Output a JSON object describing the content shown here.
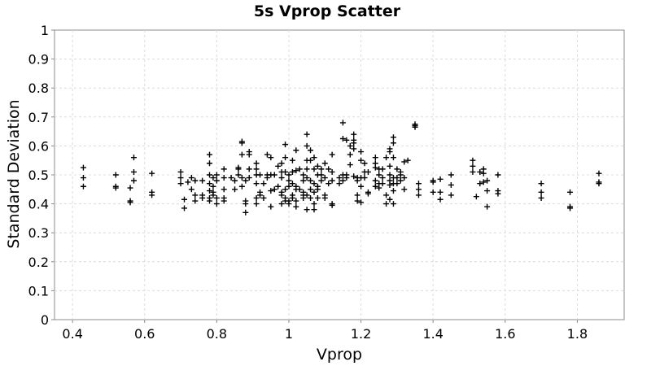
{
  "chart_data": {
    "type": "scatter",
    "title": "5s Vprop Scatter",
    "xlabel": "Vprop",
    "ylabel": "Standard Deviation",
    "xlim": [
      0.35,
      1.93
    ],
    "ylim": [
      0,
      1
    ],
    "xticks": [
      "0.4",
      "0.6",
      "0.8",
      "1",
      "1.2",
      "1.4",
      "1.6",
      "1.8"
    ],
    "xtick_values": [
      0.4,
      0.6,
      0.8,
      1.0,
      1.2,
      1.4,
      1.6,
      1.8
    ],
    "yticks": [
      "0",
      "0.1",
      "0.2",
      "0.3",
      "0.4",
      "0.5",
      "0.6",
      "0.7",
      "0.8",
      "0.9",
      "1"
    ],
    "ytick_values": [
      0,
      0.1,
      0.2,
      0.3,
      0.4,
      0.5,
      0.6,
      0.7,
      0.8,
      0.9,
      1.0
    ],
    "grid": true,
    "marker": "plus",
    "marker_color": "#000000",
    "points": [
      [
        0.43,
        0.525
      ],
      [
        0.43,
        0.49
      ],
      [
        0.43,
        0.46
      ],
      [
        0.52,
        0.5
      ],
      [
        0.52,
        0.46
      ],
      [
        0.52,
        0.455
      ],
      [
        0.56,
        0.455
      ],
      [
        0.56,
        0.41
      ],
      [
        0.56,
        0.405
      ],
      [
        0.57,
        0.56
      ],
      [
        0.57,
        0.51
      ],
      [
        0.57,
        0.48
      ],
      [
        0.62,
        0.505
      ],
      [
        0.62,
        0.44
      ],
      [
        0.62,
        0.43
      ],
      [
        0.7,
        0.51
      ],
      [
        0.7,
        0.49
      ],
      [
        0.7,
        0.47
      ],
      [
        0.71,
        0.415
      ],
      [
        0.71,
        0.385
      ],
      [
        0.72,
        0.475
      ],
      [
        0.73,
        0.49
      ],
      [
        0.73,
        0.45
      ],
      [
        0.74,
        0.43
      ],
      [
        0.74,
        0.41
      ],
      [
        0.74,
        0.48
      ],
      [
        0.76,
        0.48
      ],
      [
        0.76,
        0.43
      ],
      [
        0.76,
        0.42
      ],
      [
        0.78,
        0.57
      ],
      [
        0.78,
        0.54
      ],
      [
        0.78,
        0.5
      ],
      [
        0.78,
        0.47
      ],
      [
        0.78,
        0.445
      ],
      [
        0.78,
        0.42
      ],
      [
        0.78,
        0.41
      ],
      [
        0.79,
        0.46
      ],
      [
        0.79,
        0.44
      ],
      [
        0.79,
        0.43
      ],
      [
        0.79,
        0.49
      ],
      [
        0.8,
        0.5
      ],
      [
        0.8,
        0.48
      ],
      [
        0.8,
        0.42
      ],
      [
        0.8,
        0.4
      ],
      [
        0.82,
        0.52
      ],
      [
        0.82,
        0.49
      ],
      [
        0.82,
        0.45
      ],
      [
        0.82,
        0.42
      ],
      [
        0.82,
        0.41
      ],
      [
        0.84,
        0.49
      ],
      [
        0.85,
        0.48
      ],
      [
        0.85,
        0.45
      ],
      [
        0.86,
        0.5
      ],
      [
        0.86,
        0.52
      ],
      [
        0.86,
        0.525
      ],
      [
        0.87,
        0.615
      ],
      [
        0.87,
        0.61
      ],
      [
        0.87,
        0.57
      ],
      [
        0.87,
        0.49
      ],
      [
        0.87,
        0.46
      ],
      [
        0.88,
        0.41
      ],
      [
        0.88,
        0.4
      ],
      [
        0.88,
        0.37
      ],
      [
        0.88,
        0.48
      ],
      [
        0.89,
        0.58
      ],
      [
        0.89,
        0.57
      ],
      [
        0.89,
        0.52
      ],
      [
        0.89,
        0.49
      ],
      [
        0.91,
        0.54
      ],
      [
        0.91,
        0.52
      ],
      [
        0.91,
        0.5
      ],
      [
        0.91,
        0.47
      ],
      [
        0.91,
        0.4
      ],
      [
        0.91,
        0.42
      ],
      [
        0.92,
        0.5
      ],
      [
        0.92,
        0.44
      ],
      [
        0.92,
        0.43
      ],
      [
        0.93,
        0.42
      ],
      [
        0.93,
        0.47
      ],
      [
        0.94,
        0.57
      ],
      [
        0.94,
        0.5
      ],
      [
        0.94,
        0.49
      ],
      [
        0.95,
        0.56
      ],
      [
        0.95,
        0.5
      ],
      [
        0.95,
        0.445
      ],
      [
        0.95,
        0.39
      ],
      [
        0.96,
        0.5
      ],
      [
        0.96,
        0.45
      ],
      [
        0.97,
        0.46
      ],
      [
        0.97,
        0.53
      ],
      [
        0.98,
        0.54
      ],
      [
        0.98,
        0.51
      ],
      [
        0.98,
        0.49
      ],
      [
        0.98,
        0.44
      ],
      [
        0.98,
        0.43
      ],
      [
        0.98,
        0.4
      ],
      [
        0.99,
        0.605
      ],
      [
        0.99,
        0.56
      ],
      [
        0.99,
        0.51
      ],
      [
        0.99,
        0.45
      ],
      [
        0.99,
        0.42
      ],
      [
        0.99,
        0.41
      ],
      [
        1.0,
        0.5
      ],
      [
        1.0,
        0.48
      ],
      [
        1.0,
        0.46
      ],
      [
        1.0,
        0.41
      ],
      [
        1.0,
        0.4
      ],
      [
        1.01,
        0.55
      ],
      [
        1.01,
        0.51
      ],
      [
        1.01,
        0.47
      ],
      [
        1.01,
        0.43
      ],
      [
        1.01,
        0.42
      ],
      [
        1.02,
        0.585
      ],
      [
        1.02,
        0.515
      ],
      [
        1.02,
        0.46
      ],
      [
        1.02,
        0.45
      ],
      [
        1.02,
        0.41
      ],
      [
        1.02,
        0.39
      ],
      [
        1.03,
        0.52
      ],
      [
        1.03,
        0.45
      ],
      [
        1.04,
        0.5
      ],
      [
        1.04,
        0.48
      ],
      [
        1.04,
        0.43
      ],
      [
        1.04,
        0.42
      ],
      [
        1.04,
        0.44
      ],
      [
        1.05,
        0.64
      ],
      [
        1.05,
        0.6
      ],
      [
        1.05,
        0.55
      ],
      [
        1.05,
        0.52
      ],
      [
        1.05,
        0.49
      ],
      [
        1.05,
        0.43
      ],
      [
        1.05,
        0.38
      ],
      [
        1.06,
        0.585
      ],
      [
        1.06,
        0.55
      ],
      [
        1.06,
        0.48
      ],
      [
        1.06,
        0.45
      ],
      [
        1.06,
        0.42
      ],
      [
        1.07,
        0.56
      ],
      [
        1.07,
        0.52
      ],
      [
        1.07,
        0.47
      ],
      [
        1.07,
        0.44
      ],
      [
        1.07,
        0.4
      ],
      [
        1.07,
        0.38
      ],
      [
        1.08,
        0.53
      ],
      [
        1.08,
        0.5
      ],
      [
        1.08,
        0.46
      ],
      [
        1.08,
        0.45
      ],
      [
        1.08,
        0.42
      ],
      [
        1.09,
        0.5
      ],
      [
        1.09,
        0.48
      ],
      [
        1.09,
        0.52
      ],
      [
        1.1,
        0.54
      ],
      [
        1.1,
        0.49
      ],
      [
        1.1,
        0.43
      ],
      [
        1.1,
        0.42
      ],
      [
        1.11,
        0.52
      ],
      [
        1.11,
        0.47
      ],
      [
        1.12,
        0.57
      ],
      [
        1.12,
        0.51
      ],
      [
        1.12,
        0.48
      ],
      [
        1.12,
        0.4
      ],
      [
        1.12,
        0.395
      ],
      [
        1.14,
        0.49
      ],
      [
        1.14,
        0.47
      ],
      [
        1.15,
        0.68
      ],
      [
        1.15,
        0.625
      ],
      [
        1.15,
        0.5
      ],
      [
        1.15,
        0.48
      ],
      [
        1.16,
        0.62
      ],
      [
        1.16,
        0.5
      ],
      [
        1.16,
        0.49
      ],
      [
        1.17,
        0.6
      ],
      [
        1.17,
        0.57
      ],
      [
        1.17,
        0.535
      ],
      [
        1.18,
        0.64
      ],
      [
        1.18,
        0.62
      ],
      [
        1.18,
        0.61
      ],
      [
        1.18,
        0.59
      ],
      [
        1.18,
        0.495
      ],
      [
        1.19,
        0.49
      ],
      [
        1.19,
        0.43
      ],
      [
        1.19,
        0.41
      ],
      [
        1.19,
        0.48
      ],
      [
        1.2,
        0.58
      ],
      [
        1.2,
        0.55
      ],
      [
        1.2,
        0.49
      ],
      [
        1.2,
        0.46
      ],
      [
        1.2,
        0.405
      ],
      [
        1.21,
        0.54
      ],
      [
        1.21,
        0.51
      ],
      [
        1.21,
        0.49
      ],
      [
        1.22,
        0.51
      ],
      [
        1.22,
        0.44
      ],
      [
        1.22,
        0.435
      ],
      [
        1.24,
        0.56
      ],
      [
        1.24,
        0.54
      ],
      [
        1.24,
        0.525
      ],
      [
        1.24,
        0.48
      ],
      [
        1.24,
        0.46
      ],
      [
        1.25,
        0.52
      ],
      [
        1.25,
        0.5
      ],
      [
        1.25,
        0.47
      ],
      [
        1.25,
        0.455
      ],
      [
        1.26,
        0.52
      ],
      [
        1.26,
        0.49
      ],
      [
        1.26,
        0.47
      ],
      [
        1.27,
        0.43
      ],
      [
        1.27,
        0.4
      ],
      [
        1.27,
        0.56
      ],
      [
        1.28,
        0.59
      ],
      [
        1.28,
        0.58
      ],
      [
        1.28,
        0.53
      ],
      [
        1.28,
        0.5
      ],
      [
        1.28,
        0.48
      ],
      [
        1.28,
        0.465
      ],
      [
        1.28,
        0.415
      ],
      [
        1.29,
        0.63
      ],
      [
        1.29,
        0.61
      ],
      [
        1.29,
        0.56
      ],
      [
        1.29,
        0.49
      ],
      [
        1.29,
        0.47
      ],
      [
        1.29,
        0.445
      ],
      [
        1.29,
        0.4
      ],
      [
        1.3,
        0.52
      ],
      [
        1.3,
        0.49
      ],
      [
        1.3,
        0.47
      ],
      [
        1.31,
        0.5
      ],
      [
        1.31,
        0.48
      ],
      [
        1.31,
        0.51
      ],
      [
        1.32,
        0.545
      ],
      [
        1.32,
        0.49
      ],
      [
        1.32,
        0.45
      ],
      [
        1.33,
        0.55
      ],
      [
        1.35,
        0.675
      ],
      [
        1.35,
        0.67
      ],
      [
        1.35,
        0.665
      ],
      [
        1.36,
        0.47
      ],
      [
        1.36,
        0.45
      ],
      [
        1.36,
        0.43
      ],
      [
        1.4,
        0.48
      ],
      [
        1.4,
        0.475
      ],
      [
        1.4,
        0.44
      ],
      [
        1.42,
        0.485
      ],
      [
        1.42,
        0.44
      ],
      [
        1.42,
        0.415
      ],
      [
        1.45,
        0.5
      ],
      [
        1.45,
        0.465
      ],
      [
        1.45,
        0.43
      ],
      [
        1.51,
        0.55
      ],
      [
        1.51,
        0.53
      ],
      [
        1.51,
        0.51
      ],
      [
        1.52,
        0.425
      ],
      [
        1.53,
        0.51
      ],
      [
        1.53,
        0.47
      ],
      [
        1.54,
        0.52
      ],
      [
        1.54,
        0.505
      ],
      [
        1.54,
        0.475
      ],
      [
        1.55,
        0.48
      ],
      [
        1.55,
        0.445
      ],
      [
        1.55,
        0.39
      ],
      [
        1.58,
        0.5
      ],
      [
        1.58,
        0.445
      ],
      [
        1.58,
        0.435
      ],
      [
        1.7,
        0.47
      ],
      [
        1.7,
        0.44
      ],
      [
        1.7,
        0.42
      ],
      [
        1.78,
        0.44
      ],
      [
        1.78,
        0.39
      ],
      [
        1.78,
        0.385
      ],
      [
        1.86,
        0.505
      ],
      [
        1.86,
        0.475
      ],
      [
        1.86,
        0.47
      ]
    ]
  }
}
